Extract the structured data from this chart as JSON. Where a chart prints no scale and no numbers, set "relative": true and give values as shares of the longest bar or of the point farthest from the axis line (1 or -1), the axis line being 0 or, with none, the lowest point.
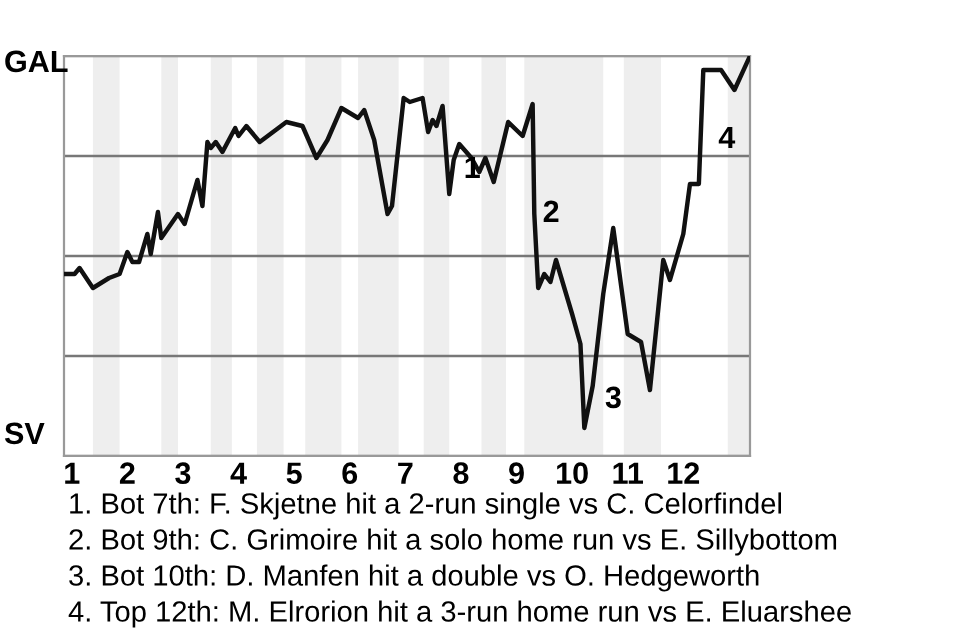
{
  "chart_data": {
    "type": "line",
    "relative": true,
    "x": [
      0.86,
      1.05,
      1.14,
      1.38,
      1.67,
      1.86,
      2.0,
      2.09,
      2.21,
      2.36,
      2.42,
      2.55,
      2.61,
      2.91,
      3.03,
      3.26,
      3.35,
      3.44,
      3.5,
      3.59,
      3.71,
      3.94,
      4.0,
      4.14,
      4.38,
      4.86,
      5.15,
      5.4,
      5.6,
      5.85,
      6.15,
      6.26,
      6.44,
      6.68,
      6.76,
      6.97,
      7.08,
      7.31,
      7.41,
      7.49,
      7.56,
      7.67,
      7.79,
      7.87,
      7.97,
      8.19,
      8.33,
      8.44,
      8.59,
      8.85,
      9.11,
      9.29,
      9.32,
      9.39,
      9.5,
      9.61,
      9.71,
      10.0,
      10.15,
      10.22,
      10.37,
      10.56,
      10.74,
      11.0,
      11.24,
      11.4,
      11.64,
      11.76,
      12.0,
      12.12,
      12.28,
      12.36,
      12.68,
      12.92,
      13.2
    ],
    "series": [
      {
        "color": "#111111",
        "values": [
          0.455,
          0.455,
          0.47,
          0.42,
          0.445,
          0.455,
          0.51,
          0.485,
          0.485,
          0.555,
          0.505,
          0.61,
          0.545,
          0.605,
          0.58,
          0.69,
          0.625,
          0.785,
          0.77,
          0.785,
          0.76,
          0.82,
          0.8,
          0.825,
          0.785,
          0.835,
          0.825,
          0.745,
          0.79,
          0.87,
          0.845,
          0.865,
          0.79,
          0.605,
          0.625,
          0.895,
          0.885,
          0.895,
          0.81,
          0.84,
          0.825,
          0.875,
          0.655,
          0.74,
          0.78,
          0.745,
          0.71,
          0.745,
          0.685,
          0.835,
          0.8,
          0.88,
          0.605,
          0.42,
          0.455,
          0.435,
          0.49,
          0.355,
          0.28,
          0.07,
          0.175,
          0.405,
          0.57,
          0.305,
          0.285,
          0.165,
          0.49,
          0.44,
          0.555,
          0.68,
          0.68,
          0.965,
          0.965,
          0.915,
          1
        ]
      }
    ],
    "xlim": [
      0.86,
      13.2
    ],
    "xticks": [
      1,
      2,
      3,
      4,
      5,
      6,
      7,
      8,
      9,
      10,
      11,
      12
    ],
    "grid": "y",
    "marker": "none",
    "line_style": "solid",
    "bands": [
      {
        "axis": "x",
        "from": 1.38,
        "to": 1.86,
        "color": "#eeeeee"
      },
      {
        "axis": "x",
        "from": 2.61,
        "to": 2.91,
        "color": "#eeeeee"
      },
      {
        "axis": "x",
        "from": 3.5,
        "to": 3.88,
        "color": "#eeeeee"
      },
      {
        "axis": "x",
        "from": 4.33,
        "to": 4.81,
        "color": "#eeeeee"
      },
      {
        "axis": "x",
        "from": 5.2,
        "to": 5.85,
        "color": "#eeeeee"
      },
      {
        "axis": "x",
        "from": 6.15,
        "to": 6.88,
        "color": "#eeeeee"
      },
      {
        "axis": "x",
        "from": 7.33,
        "to": 7.79,
        "color": "#eeeeee"
      },
      {
        "axis": "x",
        "from": 8.37,
        "to": 8.81,
        "color": "#eeeeee"
      },
      {
        "axis": "x",
        "from": 9.14,
        "to": 10.56,
        "color": "#eeeeee"
      },
      {
        "axis": "x",
        "from": 10.93,
        "to": 11.6,
        "color": "#eeeeee"
      },
      {
        "axis": "x",
        "from": 12.8,
        "to": 13.2,
        "color": "#eeeeee"
      }
    ],
    "annotations": [
      "GAL",
      "SV",
      {
        "text": "1",
        "x": 7.9,
        "y": 0.715
      },
      {
        "text": "2",
        "x": 9.32,
        "y": 0.605
      },
      {
        "text": "3",
        "x": 10.44,
        "y": 0.14
      },
      {
        "text": "4",
        "x": 12.48,
        "y": 0.79
      },
      "1. Bot 7th: F. Skjetne hit a 2-run single vs C. Celorfindel",
      "2. Bot 9th: C. Grimoire hit a solo home run vs E. Sillybottom",
      "3. Bot 10th: D. Manfen hit a double vs O. Hedgeworth",
      "4. Top 12th: M. Elrorion hit a 3-run home run vs E. Eluarshee"
    ]
  }
}
